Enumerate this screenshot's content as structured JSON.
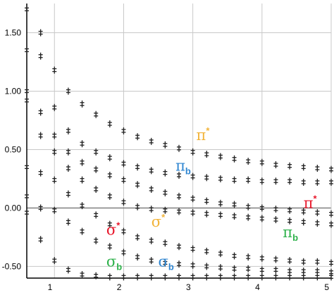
{
  "chart_data": {
    "type": "scatter",
    "title": "",
    "xlabel": "",
    "ylabel": "",
    "xlim": [
      0.6,
      5.0
    ],
    "ylim": [
      -0.6,
      1.75
    ],
    "grid": true,
    "marker": "+",
    "x_ticks": [
      {
        "value": 1,
        "label": "1"
      },
      {
        "value": 2,
        "label": "2"
      },
      {
        "value": 3,
        "label": "3"
      },
      {
        "value": 4,
        "label": "4"
      },
      {
        "value": 5,
        "label": "5"
      }
    ],
    "y_ticks": [
      {
        "value": -0.5,
        "label": "-0.50"
      },
      {
        "value": 0.0,
        "label": "0.00"
      },
      {
        "value": 0.5,
        "label": "0.50"
      },
      {
        "value": 1.0,
        "label": "1.00"
      },
      {
        "value": 1.5,
        "label": "1.50"
      }
    ],
    "series": [
      {
        "color": "#222222",
        "points": [
          [
            0.6,
            1.7
          ],
          [
            0.8,
            1.5
          ],
          [
            1.0,
            1.18
          ],
          [
            1.2,
            1.0
          ],
          [
            1.4,
            0.89
          ],
          [
            1.6,
            0.8
          ],
          [
            1.8,
            0.72
          ],
          [
            2.0,
            0.66
          ],
          [
            2.2,
            0.61
          ],
          [
            2.4,
            0.57
          ],
          [
            2.6,
            0.54
          ],
          [
            2.8,
            0.51
          ],
          [
            3.0,
            0.48
          ],
          [
            3.2,
            0.46
          ],
          [
            3.4,
            0.44
          ],
          [
            3.6,
            0.42
          ],
          [
            3.8,
            0.4
          ],
          [
            4.0,
            0.39
          ],
          [
            4.2,
            0.37
          ],
          [
            4.4,
            0.36
          ],
          [
            4.6,
            0.35
          ],
          [
            4.8,
            0.34
          ],
          [
            5.0,
            0.33
          ]
        ]
      },
      {
        "color": "#222222",
        "points": [
          [
            0.6,
            1.35
          ],
          [
            0.8,
            1.3
          ],
          [
            1.0,
            0.86
          ],
          [
            1.2,
            0.66
          ],
          [
            1.4,
            0.55
          ],
          [
            1.6,
            0.48
          ],
          [
            1.8,
            0.43
          ],
          [
            2.0,
            0.38
          ],
          [
            2.2,
            0.35
          ],
          [
            2.4,
            0.32
          ],
          [
            2.6,
            0.3
          ],
          [
            2.8,
            0.28
          ],
          [
            3.0,
            0.27
          ],
          [
            3.2,
            0.26
          ],
          [
            3.4,
            0.25
          ],
          [
            3.6,
            0.24
          ],
          [
            3.8,
            0.24
          ],
          [
            4.0,
            0.23
          ],
          [
            4.2,
            0.23
          ],
          [
            4.4,
            0.23
          ],
          [
            4.6,
            0.22
          ],
          [
            4.8,
            0.22
          ],
          [
            5.0,
            0.22
          ]
        ]
      },
      {
        "color": "#222222",
        "points": [
          [
            0.6,
            1.0
          ],
          [
            0.8,
            0.82
          ],
          [
            1.0,
            0.62
          ],
          [
            1.2,
            0.48
          ],
          [
            1.4,
            0.39
          ],
          [
            1.6,
            0.33
          ],
          [
            1.8,
            0.28
          ],
          [
            2.0,
            0.24
          ],
          [
            2.2,
            0.2
          ],
          [
            2.4,
            0.16
          ],
          [
            2.6,
            0.13
          ],
          [
            2.8,
            0.1
          ],
          [
            3.0,
            0.08
          ],
          [
            3.2,
            0.06
          ],
          [
            3.4,
            0.04
          ],
          [
            3.6,
            0.03
          ],
          [
            3.8,
            0.01
          ],
          [
            4.0,
            0.0
          ],
          [
            4.2,
            -0.01
          ],
          [
            4.4,
            -0.02
          ],
          [
            4.6,
            -0.03
          ],
          [
            4.8,
            -0.04
          ],
          [
            5.0,
            -0.05
          ]
        ]
      },
      {
        "color": "#222222",
        "points": [
          [
            0.6,
            0.92
          ],
          [
            0.8,
            0.62
          ],
          [
            1.0,
            0.48
          ],
          [
            1.2,
            0.34
          ],
          [
            1.4,
            0.24
          ],
          [
            1.6,
            0.16
          ],
          [
            1.8,
            0.1
          ],
          [
            2.0,
            0.05
          ],
          [
            2.2,
            0.01
          ],
          [
            2.4,
            -0.01
          ],
          [
            2.6,
            -0.02
          ],
          [
            2.8,
            -0.03
          ],
          [
            3.0,
            -0.04
          ],
          [
            3.2,
            -0.05
          ],
          [
            3.4,
            -0.06
          ],
          [
            3.6,
            -0.07
          ],
          [
            3.8,
            -0.08
          ],
          [
            4.0,
            -0.09
          ],
          [
            4.2,
            -0.1
          ],
          [
            4.4,
            -0.11
          ],
          [
            4.6,
            -0.12
          ],
          [
            4.8,
            -0.13
          ],
          [
            5.0,
            -0.14
          ]
        ]
      },
      {
        "color": "#222222",
        "points": [
          [
            0.6,
            0.35
          ],
          [
            0.8,
            0.3
          ],
          [
            1.0,
            0.24
          ],
          [
            1.2,
            0.12
          ],
          [
            1.4,
            0.02
          ],
          [
            1.6,
            -0.06
          ],
          [
            1.8,
            -0.14
          ],
          [
            2.0,
            -0.2
          ],
          [
            2.2,
            -0.25
          ],
          [
            2.4,
            -0.28
          ],
          [
            2.6,
            -0.3
          ],
          [
            2.8,
            -0.33
          ],
          [
            3.0,
            -0.35
          ],
          [
            3.2,
            -0.37
          ],
          [
            3.4,
            -0.39
          ],
          [
            3.6,
            -0.41
          ],
          [
            3.8,
            -0.42
          ],
          [
            4.0,
            -0.43
          ],
          [
            4.2,
            -0.44
          ],
          [
            4.4,
            -0.45
          ],
          [
            4.6,
            -0.46
          ],
          [
            4.8,
            -0.46
          ],
          [
            5.0,
            -0.47
          ]
        ]
      },
      {
        "color": "#222222",
        "points": [
          [
            0.6,
            0.1
          ],
          [
            0.8,
            0.0
          ],
          [
            1.0,
            -0.02
          ],
          [
            1.2,
            -0.12
          ],
          [
            1.4,
            -0.2
          ],
          [
            1.6,
            -0.28
          ],
          [
            1.8,
            -0.33
          ],
          [
            2.0,
            -0.38
          ],
          [
            2.2,
            -0.42
          ],
          [
            2.4,
            -0.45
          ],
          [
            2.6,
            -0.47
          ],
          [
            2.8,
            -0.48
          ],
          [
            3.0,
            -0.49
          ],
          [
            3.2,
            -0.5
          ],
          [
            3.4,
            -0.51
          ],
          [
            3.6,
            -0.52
          ],
          [
            3.8,
            -0.52
          ],
          [
            4.0,
            -0.53
          ],
          [
            4.2,
            -0.53
          ],
          [
            4.4,
            -0.54
          ],
          [
            4.6,
            -0.54
          ],
          [
            4.8,
            -0.54
          ],
          [
            5.0,
            -0.55
          ]
        ]
      },
      {
        "color": "#222222",
        "points": [
          [
            0.6,
            -0.04
          ],
          [
            0.8,
            -0.27
          ],
          [
            1.0,
            -0.45
          ],
          [
            1.2,
            -0.53
          ],
          [
            1.4,
            -0.57
          ],
          [
            1.6,
            -0.58
          ],
          [
            1.8,
            -0.59
          ],
          [
            2.0,
            -0.59
          ],
          [
            2.2,
            -0.59
          ],
          [
            2.4,
            -0.59
          ],
          [
            2.6,
            -0.59
          ],
          [
            2.8,
            -0.59
          ],
          [
            3.0,
            -0.59
          ],
          [
            3.2,
            -0.59
          ],
          [
            3.4,
            -0.59
          ],
          [
            3.6,
            -0.59
          ],
          [
            3.8,
            -0.59
          ],
          [
            4.0,
            -0.59
          ],
          [
            4.2,
            -0.59
          ],
          [
            4.4,
            -0.59
          ],
          [
            4.6,
            -0.59
          ],
          [
            4.8,
            -0.59
          ],
          [
            5.0,
            -0.59
          ]
        ]
      }
    ],
    "annotations": [
      {
        "symbol": "π",
        "suffix": "*",
        "color": "#f2b43a",
        "x": 3.05,
        "y": 0.58
      },
      {
        "symbol": "π",
        "suffix": "b",
        "color": "#2f86d1",
        "x": 2.75,
        "y": 0.32
      },
      {
        "symbol": "π",
        "suffix": "*",
        "color": "#e8162a",
        "x": 4.6,
        "y": 0.0
      },
      {
        "symbol": "π",
        "suffix": "b",
        "color": "#2fb24c",
        "x": 4.3,
        "y": -0.25
      },
      {
        "symbol": "σ",
        "suffix": "*",
        "color": "#e8162a",
        "x": 1.75,
        "y": -0.23
      },
      {
        "symbol": "σ",
        "suffix": "*",
        "color": "#f2b43a",
        "x": 2.4,
        "y": -0.16
      },
      {
        "symbol": "σ",
        "suffix": "b",
        "color": "#2fb24c",
        "x": 1.75,
        "y": -0.5
      },
      {
        "symbol": "σ",
        "suffix": "b",
        "color": "#2f86d1",
        "x": 2.5,
        "y": -0.5
      }
    ]
  }
}
